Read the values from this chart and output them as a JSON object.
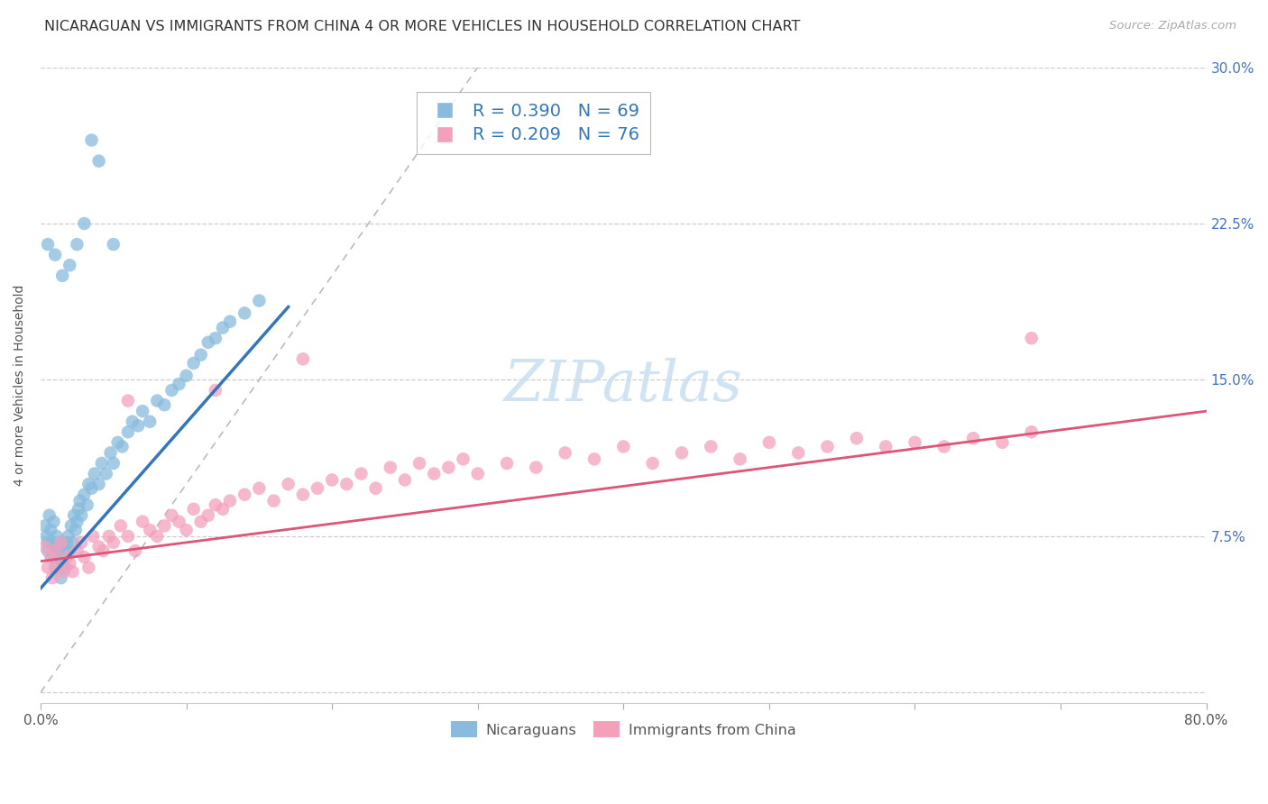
{
  "title": "NICARAGUAN VS IMMIGRANTS FROM CHINA 4 OR MORE VEHICLES IN HOUSEHOLD CORRELATION CHART",
  "source": "Source: ZipAtlas.com",
  "ylabel": "4 or more Vehicles in Household",
  "xlim": [
    0.0,
    0.8
  ],
  "ylim": [
    -0.005,
    0.3
  ],
  "background_color": "#ffffff",
  "grid_color": "#cccccc",
  "blue_color": "#88bbdd",
  "pink_color": "#f4a0bb",
  "blue_line_color": "#3377bb",
  "pink_line_color": "#dd5577",
  "diag_line_color": "#bbbbbb",
  "R_blue": 0.39,
  "N_blue": 69,
  "R_pink": 0.209,
  "N_pink": 76,
  "tick_color": "#4472c4",
  "watermark": "ZIPatlas",
  "title_fontsize": 11.5,
  "axis_label_fontsize": 10,
  "tick_fontsize": 11,
  "legend_fontsize": 14,
  "source_fontsize": 9.5,
  "watermark_fontsize": 46,
  "nic_x": [
    0.003,
    0.004,
    0.005,
    0.005,
    0.006,
    0.007,
    0.008,
    0.008,
    0.009,
    0.01,
    0.01,
    0.011,
    0.012,
    0.013,
    0.014,
    0.015,
    0.015,
    0.016,
    0.017,
    0.018,
    0.019,
    0.02,
    0.021,
    0.022,
    0.023,
    0.024,
    0.025,
    0.026,
    0.027,
    0.028,
    0.03,
    0.032,
    0.033,
    0.035,
    0.037,
    0.04,
    0.042,
    0.045,
    0.048,
    0.05,
    0.053,
    0.056,
    0.06,
    0.063,
    0.067,
    0.07,
    0.075,
    0.08,
    0.085,
    0.09,
    0.095,
    0.1,
    0.105,
    0.11,
    0.115,
    0.12,
    0.125,
    0.13,
    0.14,
    0.15,
    0.005,
    0.01,
    0.015,
    0.02,
    0.025,
    0.03,
    0.035,
    0.04,
    0.05
  ],
  "nic_y": [
    0.08,
    0.075,
    0.072,
    0.068,
    0.085,
    0.078,
    0.072,
    0.065,
    0.082,
    0.07,
    0.06,
    0.075,
    0.068,
    0.065,
    0.055,
    0.072,
    0.062,
    0.068,
    0.06,
    0.072,
    0.075,
    0.068,
    0.08,
    0.072,
    0.085,
    0.078,
    0.082,
    0.088,
    0.092,
    0.085,
    0.095,
    0.09,
    0.1,
    0.098,
    0.105,
    0.1,
    0.11,
    0.105,
    0.115,
    0.11,
    0.12,
    0.118,
    0.125,
    0.13,
    0.128,
    0.135,
    0.13,
    0.14,
    0.138,
    0.145,
    0.148,
    0.152,
    0.158,
    0.162,
    0.168,
    0.17,
    0.175,
    0.178,
    0.182,
    0.188,
    0.215,
    0.21,
    0.2,
    0.205,
    0.215,
    0.225,
    0.265,
    0.255,
    0.215
  ],
  "chi_x": [
    0.003,
    0.005,
    0.007,
    0.008,
    0.01,
    0.012,
    0.014,
    0.016,
    0.018,
    0.02,
    0.022,
    0.025,
    0.028,
    0.03,
    0.033,
    0.036,
    0.04,
    0.043,
    0.047,
    0.05,
    0.055,
    0.06,
    0.065,
    0.07,
    0.075,
    0.08,
    0.085,
    0.09,
    0.095,
    0.1,
    0.105,
    0.11,
    0.115,
    0.12,
    0.125,
    0.13,
    0.14,
    0.15,
    0.16,
    0.17,
    0.18,
    0.19,
    0.2,
    0.21,
    0.22,
    0.23,
    0.24,
    0.25,
    0.26,
    0.27,
    0.28,
    0.29,
    0.3,
    0.32,
    0.34,
    0.36,
    0.38,
    0.4,
    0.42,
    0.44,
    0.46,
    0.48,
    0.5,
    0.52,
    0.54,
    0.56,
    0.58,
    0.6,
    0.62,
    0.64,
    0.66,
    0.68,
    0.06,
    0.12,
    0.18,
    0.68
  ],
  "chi_y": [
    0.07,
    0.06,
    0.065,
    0.055,
    0.068,
    0.06,
    0.072,
    0.058,
    0.065,
    0.062,
    0.058,
    0.068,
    0.072,
    0.065,
    0.06,
    0.075,
    0.07,
    0.068,
    0.075,
    0.072,
    0.08,
    0.075,
    0.068,
    0.082,
    0.078,
    0.075,
    0.08,
    0.085,
    0.082,
    0.078,
    0.088,
    0.082,
    0.085,
    0.09,
    0.088,
    0.092,
    0.095,
    0.098,
    0.092,
    0.1,
    0.095,
    0.098,
    0.102,
    0.1,
    0.105,
    0.098,
    0.108,
    0.102,
    0.11,
    0.105,
    0.108,
    0.112,
    0.105,
    0.11,
    0.108,
    0.115,
    0.112,
    0.118,
    0.11,
    0.115,
    0.118,
    0.112,
    0.12,
    0.115,
    0.118,
    0.122,
    0.118,
    0.12,
    0.118,
    0.122,
    0.12,
    0.125,
    0.14,
    0.145,
    0.16,
    0.17
  ],
  "blue_line_x": [
    0.0,
    0.17
  ],
  "blue_line_y": [
    0.05,
    0.185
  ],
  "pink_line_x": [
    0.0,
    0.8
  ],
  "pink_line_y": [
    0.063,
    0.135
  ]
}
